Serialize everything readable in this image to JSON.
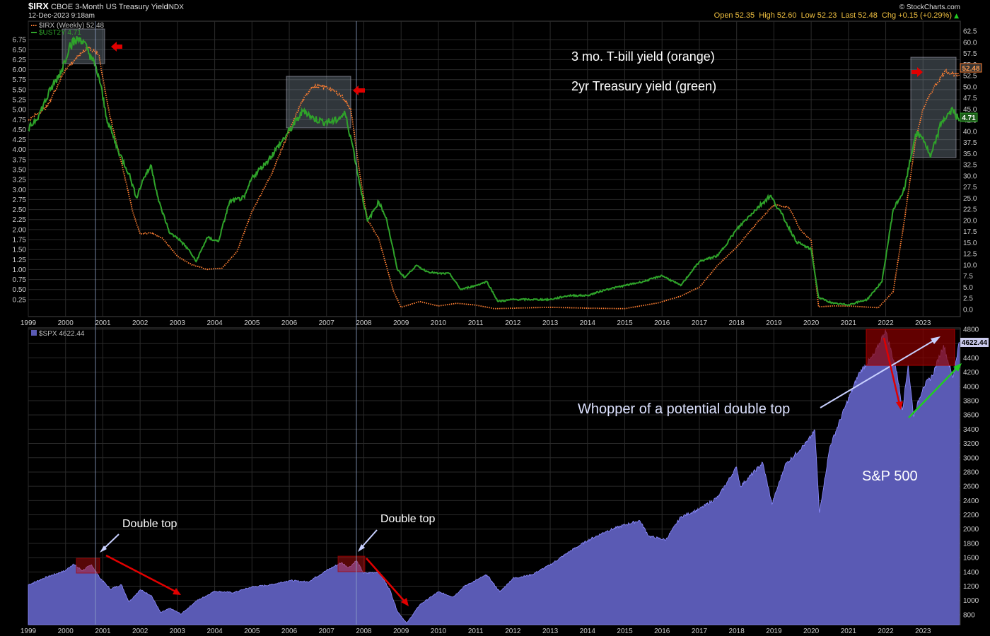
{
  "header": {
    "symbol": "$IRX",
    "description": "CBOE 3-Month US Treasury Yield",
    "exchange": "INDX",
    "date": "12-Dec-2023 9:18am",
    "credit": "© StockCharts.com",
    "ohlc_text": "Open 52.35  High 52.60  Low 52.23  Last 52.48  Chg +0.15 (+0.29%)",
    "chg_arrow": "▲"
  },
  "legend": {
    "irx": "$IRX (Weekly) 52.48",
    "ust2y": "$UST2Y 4.71",
    "spx": "$SPX 4622.44"
  },
  "annotations": {
    "yields_title_1": "3 mo. T-bill yield (orange)",
    "yields_title_2": "2yr Treasury yield (green)",
    "double_top_1": "Double top",
    "double_top_2": "Double top",
    "whopper": "Whopper of a potential double top",
    "sp500": "S&P 500"
  },
  "colors": {
    "irx": "#ff7f32",
    "ust2y": "#2fa32a",
    "spx_fill": "#5a5ab4",
    "spx_line": "#8c8cff",
    "highlight_gray": "#8a9aa8",
    "highlight_red": "#8b0000",
    "red_arrow": "#e00000",
    "green_arrow": "#22cc22",
    "grid": "#2a2a2a"
  },
  "chart_data": [
    {
      "type": "line",
      "x_ticks": [
        "1999",
        "2000",
        "2001",
        "2002",
        "2003",
        "2004",
        "2005",
        "2006",
        "2007",
        "2008",
        "2009",
        "2010",
        "2011",
        "2012",
        "2013",
        "2014",
        "2015",
        "2016",
        "2017",
        "2018",
        "2019",
        "2020",
        "2021",
        "2022",
        "2023"
      ],
      "left_axis_ticks": [
        "6.75",
        "6.50",
        "6.25",
        "6.00",
        "5.75",
        "5.50",
        "5.25",
        "5.00",
        "4.75",
        "4.50",
        "4.25",
        "4.00",
        "3.75",
        "3.50",
        "3.25",
        "3.00",
        "2.75",
        "2.50",
        "2.25",
        "2.00",
        "1.75",
        "1.50",
        "1.25",
        "1.00",
        "0.75",
        "0.50",
        "0.25"
      ],
      "right_axis_ticks": [
        "62.5",
        "60.0",
        "57.5",
        "55.0",
        "52.5",
        "50.0",
        "47.5",
        "45.0",
        "42.5",
        "40.0",
        "37.5",
        "35.0",
        "32.5",
        "30.0",
        "27.5",
        "25.0",
        "22.5",
        "20.0",
        "17.5",
        "15.0",
        "12.5",
        "10.0",
        "7.5",
        "5.0",
        "2.5",
        "0.0"
      ],
      "left_ylim": [
        0,
        7
      ],
      "right_ylim": [
        -2,
        62.5
      ],
      "last_labels": {
        "irx": "52.48",
        "ust2y": "4.71"
      },
      "series": [
        {
          "name": "$IRX (Weekly)",
          "axis": "right",
          "style": "dotted",
          "points": [
            [
              1999.0,
              42.5
            ],
            [
              1999.5,
              45.5
            ],
            [
              2000.0,
              54
            ],
            [
              2000.3,
              56.5
            ],
            [
              2000.6,
              59
            ],
            [
              2000.9,
              57
            ],
            [
              2001.0,
              52
            ],
            [
              2001.2,
              43
            ],
            [
              2001.5,
              33
            ],
            [
              2001.8,
              22
            ],
            [
              2002.0,
              17
            ],
            [
              2002.3,
              17.2
            ],
            [
              2002.6,
              16
            ],
            [
              2003.0,
              12
            ],
            [
              2003.4,
              10
            ],
            [
              2003.8,
              9
            ],
            [
              2004.2,
              9.3
            ],
            [
              2004.6,
              13
            ],
            [
              2005.0,
              22
            ],
            [
              2005.5,
              30
            ],
            [
              2006.0,
              40
            ],
            [
              2006.3,
              46
            ],
            [
              2006.6,
              50
            ],
            [
              2007.0,
              50
            ],
            [
              2007.4,
              48
            ],
            [
              2007.65,
              45
            ],
            [
              2007.9,
              30
            ],
            [
              2008.1,
              20
            ],
            [
              2008.4,
              16
            ],
            [
              2008.8,
              4
            ],
            [
              2009.0,
              0.5
            ],
            [
              2009.5,
              1.8
            ],
            [
              2010.0,
              0.8
            ],
            [
              2010.5,
              1.4
            ],
            [
              2011.0,
              1.0
            ],
            [
              2011.5,
              0.2
            ],
            [
              2012.0,
              0.3
            ],
            [
              2013.0,
              0.5
            ],
            [
              2014.0,
              0.3
            ],
            [
              2015.0,
              0.2
            ],
            [
              2015.9,
              1.5
            ],
            [
              2016.5,
              3
            ],
            [
              2017.0,
              5
            ],
            [
              2017.5,
              10
            ],
            [
              2018.0,
              14
            ],
            [
              2018.5,
              19
            ],
            [
              2019.0,
              23.5
            ],
            [
              2019.4,
              23
            ],
            [
              2019.7,
              18
            ],
            [
              2020.0,
              15.5
            ],
            [
              2020.2,
              0.6
            ],
            [
              2020.6,
              0.8
            ],
            [
              2021.0,
              0.8
            ],
            [
              2021.8,
              0.4
            ],
            [
              2022.2,
              4
            ],
            [
              2022.5,
              20
            ],
            [
              2022.8,
              38
            ],
            [
              2023.0,
              45
            ],
            [
              2023.3,
              50
            ],
            [
              2023.6,
              53.5
            ],
            [
              2023.97,
              52.5
            ]
          ]
        },
        {
          "name": "$UST2Y",
          "axis": "left",
          "style": "solid",
          "points": [
            [
              1999.0,
              4.5
            ],
            [
              1999.3,
              4.9
            ],
            [
              1999.6,
              5.5
            ],
            [
              1999.9,
              6.0
            ],
            [
              2000.1,
              6.6
            ],
            [
              2000.4,
              6.8
            ],
            [
              2000.7,
              6.3
            ],
            [
              2000.9,
              5.8
            ],
            [
              2001.1,
              4.8
            ],
            [
              2001.4,
              4.0
            ],
            [
              2001.7,
              3.4
            ],
            [
              2001.9,
              2.8
            ],
            [
              2002.1,
              3.3
            ],
            [
              2002.3,
              3.6
            ],
            [
              2002.5,
              2.7
            ],
            [
              2002.8,
              1.9
            ],
            [
              2003.0,
              1.8
            ],
            [
              2003.3,
              1.5
            ],
            [
              2003.5,
              1.2
            ],
            [
              2003.8,
              1.8
            ],
            [
              2004.1,
              1.7
            ],
            [
              2004.4,
              2.7
            ],
            [
              2004.8,
              2.8
            ],
            [
              2005.0,
              3.3
            ],
            [
              2005.4,
              3.7
            ],
            [
              2005.8,
              4.2
            ],
            [
              2006.1,
              4.6
            ],
            [
              2006.4,
              5.0
            ],
            [
              2006.6,
              4.8
            ],
            [
              2006.9,
              4.7
            ],
            [
              2007.2,
              4.7
            ],
            [
              2007.5,
              4.9
            ],
            [
              2007.7,
              4.1
            ],
            [
              2007.9,
              3.1
            ],
            [
              2008.1,
              2.2
            ],
            [
              2008.4,
              2.7
            ],
            [
              2008.6,
              2.3
            ],
            [
              2008.9,
              1.0
            ],
            [
              2009.1,
              0.8
            ],
            [
              2009.4,
              1.1
            ],
            [
              2009.7,
              0.95
            ],
            [
              2010.0,
              0.9
            ],
            [
              2010.3,
              0.9
            ],
            [
              2010.6,
              0.5
            ],
            [
              2011.0,
              0.6
            ],
            [
              2011.3,
              0.7
            ],
            [
              2011.6,
              0.2
            ],
            [
              2012.0,
              0.25
            ],
            [
              2012.5,
              0.25
            ],
            [
              2013.0,
              0.25
            ],
            [
              2013.5,
              0.35
            ],
            [
              2014.0,
              0.35
            ],
            [
              2014.5,
              0.5
            ],
            [
              2015.0,
              0.6
            ],
            [
              2015.5,
              0.7
            ],
            [
              2016.0,
              0.85
            ],
            [
              2016.5,
              0.6
            ],
            [
              2017.0,
              1.2
            ],
            [
              2017.5,
              1.35
            ],
            [
              2018.0,
              2.0
            ],
            [
              2018.4,
              2.4
            ],
            [
              2018.9,
              2.85
            ],
            [
              2019.2,
              2.4
            ],
            [
              2019.6,
              1.7
            ],
            [
              2020.0,
              1.5
            ],
            [
              2020.2,
              0.3
            ],
            [
              2020.6,
              0.15
            ],
            [
              2021.0,
              0.12
            ],
            [
              2021.5,
              0.25
            ],
            [
              2021.9,
              0.7
            ],
            [
              2022.2,
              2.5
            ],
            [
              2022.5,
              3.0
            ],
            [
              2022.8,
              4.4
            ],
            [
              2023.0,
              4.3
            ],
            [
              2023.2,
              3.8
            ],
            [
              2023.5,
              4.7
            ],
            [
              2023.8,
              5.0
            ],
            [
              2023.97,
              4.71
            ]
          ]
        }
      ]
    },
    {
      "type": "area",
      "x_ticks": [
        "1999",
        "2000",
        "2001",
        "2002",
        "2003",
        "2004",
        "2005",
        "2006",
        "2007",
        "2008",
        "2009",
        "2010",
        "2011",
        "2012",
        "2013",
        "2014",
        "2015",
        "2016",
        "2017",
        "2018",
        "2019",
        "2020",
        "2021",
        "2022",
        "2023"
      ],
      "y_ticks": [
        "4800",
        "4600",
        "4400",
        "4200",
        "4000",
        "3800",
        "3600",
        "3400",
        "3200",
        "3000",
        "2800",
        "2600",
        "2400",
        "2200",
        "2000",
        "1800",
        "1600",
        "1400",
        "1200",
        "1000",
        "800"
      ],
      "ylim": [
        700,
        4800
      ],
      "last_label": "4622.44",
      "series": [
        {
          "name": "$SPX",
          "points": [
            [
              1999.0,
              1220
            ],
            [
              1999.5,
              1330
            ],
            [
              2000.0,
              1420
            ],
            [
              2000.2,
              1510
            ],
            [
              2000.45,
              1420
            ],
            [
              2000.7,
              1500
            ],
            [
              2000.9,
              1330
            ],
            [
              2001.2,
              1160
            ],
            [
              2001.5,
              1220
            ],
            [
              2001.7,
              980
            ],
            [
              2002.0,
              1150
            ],
            [
              2002.3,
              1070
            ],
            [
              2002.55,
              830
            ],
            [
              2002.8,
              890
            ],
            [
              2003.1,
              810
            ],
            [
              2003.5,
              990
            ],
            [
              2004.0,
              1130
            ],
            [
              2004.5,
              1110
            ],
            [
              2005.0,
              1190
            ],
            [
              2005.5,
              1220
            ],
            [
              2006.0,
              1280
            ],
            [
              2006.5,
              1260
            ],
            [
              2007.0,
              1420
            ],
            [
              2007.4,
              1530
            ],
            [
              2007.6,
              1460
            ],
            [
              2007.8,
              1560
            ],
            [
              2008.0,
              1380
            ],
            [
              2008.4,
              1400
            ],
            [
              2008.7,
              1150
            ],
            [
              2008.9,
              850
            ],
            [
              2009.15,
              680
            ],
            [
              2009.5,
              940
            ],
            [
              2010.0,
              1120
            ],
            [
              2010.4,
              1050
            ],
            [
              2010.7,
              1200
            ],
            [
              2011.3,
              1360
            ],
            [
              2011.65,
              1120
            ],
            [
              2012.0,
              1310
            ],
            [
              2012.5,
              1360
            ],
            [
              2013.0,
              1500
            ],
            [
              2013.5,
              1680
            ],
            [
              2014.0,
              1840
            ],
            [
              2014.5,
              1970
            ],
            [
              2015.0,
              2060
            ],
            [
              2015.4,
              2120
            ],
            [
              2015.65,
              1900
            ],
            [
              2016.1,
              1850
            ],
            [
              2016.5,
              2170
            ],
            [
              2017.0,
              2280
            ],
            [
              2017.5,
              2450
            ],
            [
              2018.0,
              2870
            ],
            [
              2018.1,
              2600
            ],
            [
              2018.7,
              2930
            ],
            [
              2018.95,
              2350
            ],
            [
              2019.3,
              2900
            ],
            [
              2019.9,
              3230
            ],
            [
              2020.1,
              3380
            ],
            [
              2020.22,
              2230
            ],
            [
              2020.5,
              3150
            ],
            [
              2020.9,
              3700
            ],
            [
              2021.3,
              4200
            ],
            [
              2021.7,
              4450
            ],
            [
              2021.99,
              4790
            ],
            [
              2022.3,
              4200
            ],
            [
              2022.45,
              3670
            ],
            [
              2022.6,
              4300
            ],
            [
              2022.75,
              3580
            ],
            [
              2023.0,
              3990
            ],
            [
              2023.25,
              4150
            ],
            [
              2023.55,
              4580
            ],
            [
              2023.8,
              4120
            ],
            [
              2023.97,
              4622
            ]
          ]
        }
      ]
    }
  ]
}
